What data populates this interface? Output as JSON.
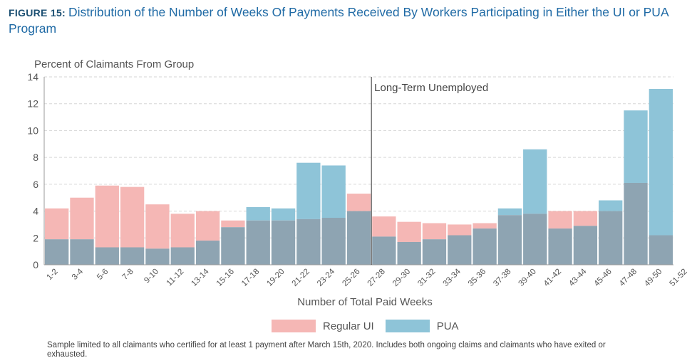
{
  "figure": {
    "label": "FIGURE 15:",
    "title": "Distribution of the Number of Weeks Of Payments Received By Workers Participating in Either the UI or PUA Program"
  },
  "chart_data": {
    "type": "bar",
    "ylabel": "Percent of Claimants From Group",
    "xlabel": "Number of Total Paid Weeks",
    "ylim": [
      0,
      14
    ],
    "yticks": [
      0,
      2,
      4,
      6,
      8,
      10,
      12,
      14
    ],
    "grid": true,
    "categories": [
      "1-2",
      "3-4",
      "5-6",
      "7-8",
      "9-10",
      "11-12",
      "13-14",
      "15-16",
      "17-18",
      "19-20",
      "21-22",
      "23-24",
      "25-26",
      "27-28",
      "29-30",
      "31-32",
      "33-34",
      "35-36",
      "37-38",
      "39-40",
      "41-42",
      "43-44",
      "45-46",
      "47-48",
      "49-50"
    ],
    "tick_labels": [
      "1-2",
      "3-4",
      "5-6",
      "7-8",
      "9-10",
      "11-12",
      "13-14",
      "15-16",
      "17-18",
      "19-20",
      "21-22",
      "23-24",
      "25-26",
      "27-28",
      "29-30",
      "31-32",
      "33-34",
      "35-36",
      "37-38",
      "39-40",
      "41-42",
      "43-44",
      "45-46",
      "47-48",
      "49-50",
      "51-52"
    ],
    "series": [
      {
        "name": "Regular UI",
        "color": "#f5b7b5",
        "values": [
          4.2,
          5.0,
          5.9,
          5.8,
          4.5,
          3.8,
          4.0,
          3.3,
          3.3,
          3.3,
          3.4,
          3.5,
          5.3,
          3.6,
          3.2,
          3.1,
          3.0,
          3.1,
          3.7,
          3.8,
          4.0,
          4.0,
          4.0,
          6.1,
          2.2
        ]
      },
      {
        "name": "PUA",
        "color": "#8ec4d8",
        "values": [
          1.9,
          1.9,
          1.3,
          1.3,
          1.2,
          1.3,
          1.8,
          2.8,
          4.3,
          4.2,
          7.6,
          7.4,
          4.0,
          2.1,
          1.7,
          1.9,
          2.2,
          2.7,
          4.2,
          8.6,
          2.7,
          2.9,
          4.8,
          11.5,
          13.1
        ]
      }
    ],
    "overlap_color": "#8ea4b2",
    "annotation": {
      "text": "Long-Term Unemployed",
      "position": 13
    }
  },
  "note": "Sample limited to all claimants who certified for at least 1 payment after March 15th, 2020. Includes both ongoing claims and claimants who have exited or exhausted."
}
